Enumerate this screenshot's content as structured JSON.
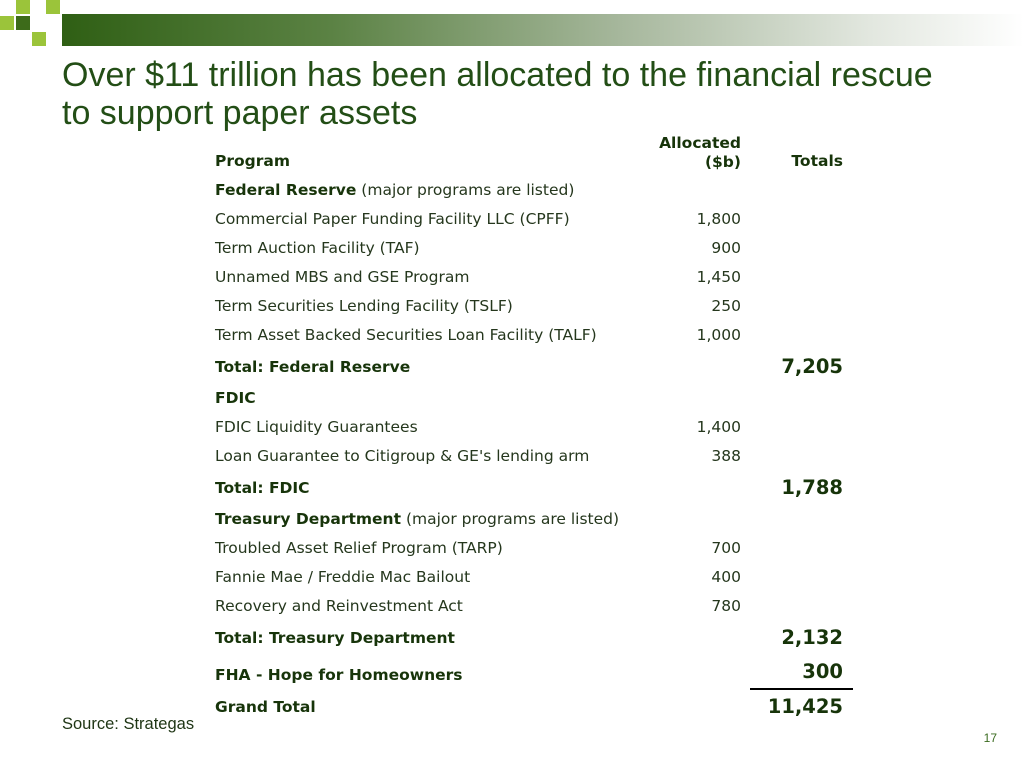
{
  "slide": {
    "title_line1": "Over $11 trillion has been allocated to the financial rescue",
    "title_line2": "to support paper assets",
    "source": "Source: Strategas",
    "page_number": "17"
  },
  "table": {
    "header": {
      "program": "Program",
      "allocated_line1": "Allocated",
      "allocated_line2": "($b)",
      "totals": "Totals"
    },
    "rows": [
      {
        "program": "Federal Reserve",
        "note": "(major programs are listed)"
      },
      {
        "program": "Commercial Paper Funding Facility LLC (CPFF)",
        "allocated": "1,800"
      },
      {
        "program": "Term Auction Facility (TAF)",
        "allocated": "900"
      },
      {
        "program": "Unnamed MBS and GSE Program",
        "allocated": "1,450"
      },
      {
        "program": "Term Securities Lending Facility (TSLF)",
        "allocated": "250"
      },
      {
        "program": "Term Asset Backed Securities Loan Facility (TALF)",
        "allocated": "1,000"
      },
      {
        "program": "Total: Federal Reserve",
        "total": "7,205"
      },
      {
        "program": "FDIC"
      },
      {
        "program": "FDIC Liquidity Guarantees",
        "allocated": "1,400"
      },
      {
        "program": "Loan Guarantee to Citigroup & GE's lending arm",
        "allocated": "388"
      },
      {
        "program": "Total: FDIC",
        "total": "1,788"
      },
      {
        "program": "Treasury Department",
        "note": "(major programs are listed)"
      },
      {
        "program": "Troubled Asset Relief Program (TARP)",
        "allocated": "700"
      },
      {
        "program": "Fannie Mae / Freddie Mac Bailout",
        "allocated": "400"
      },
      {
        "program": "Recovery and Reinvestment Act",
        "allocated": "780"
      },
      {
        "program": "Total: Treasury Department",
        "total": "2,132"
      },
      {
        "program": "FHA - Hope for Homeowners",
        "total": "300"
      },
      {
        "program": "Grand Total",
        "total": "11,425"
      }
    ]
  },
  "colors": {
    "title_text": "#234e16",
    "header_bar_dark": "#2f5f14",
    "logo_lime": "#9bc43a",
    "logo_dark": "#3d6b1a"
  }
}
